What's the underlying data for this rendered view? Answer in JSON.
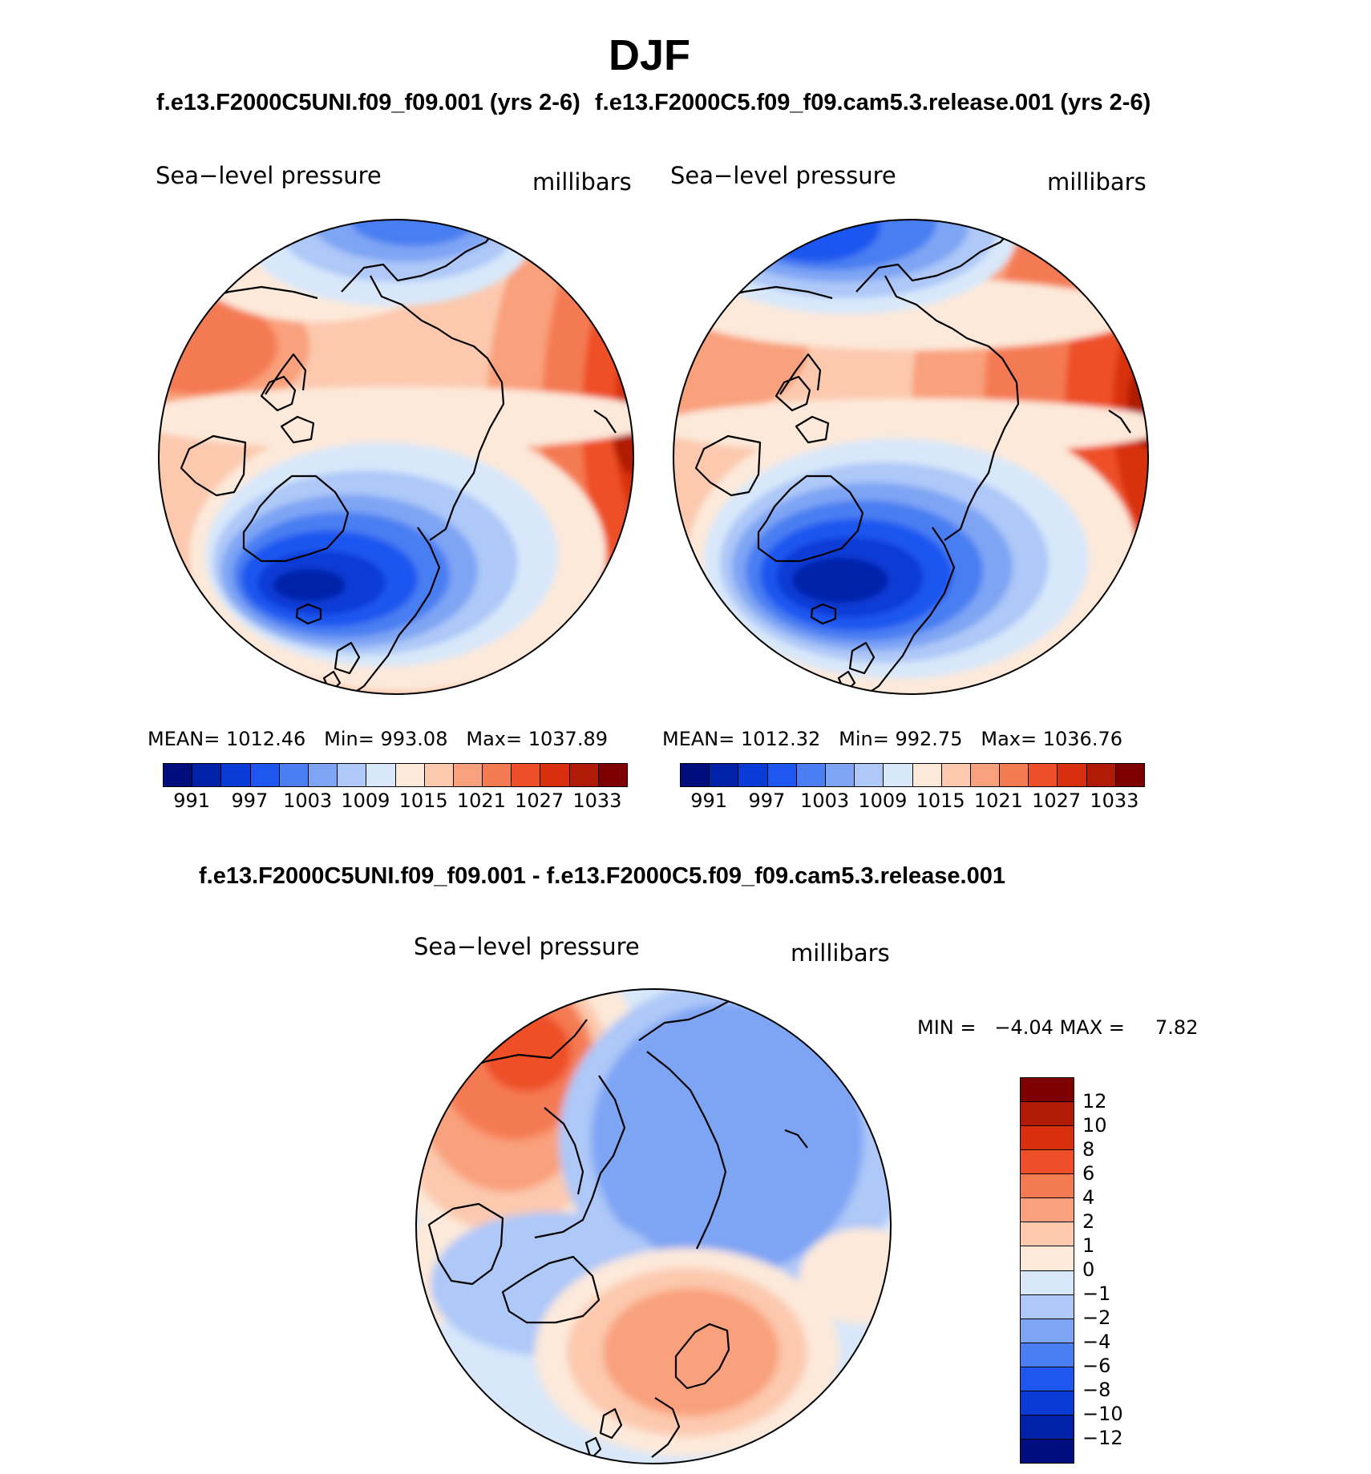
{
  "header": {
    "season": "DJF",
    "left_case": "f.e13.F2000C5UNI.f09_f09.001 (yrs 2-6)",
    "right_case": "f.e13.F2000C5.f09_f09.cam5.3.release.001 (yrs 2-6)",
    "diff_title": "f.e13.F2000C5UNI.f09_f09.001 - f.e13.F2000C5.f09_f09.cam5.3.release.001"
  },
  "panels": {
    "left": {
      "variable": "Sea−level pressure",
      "units": "millibars",
      "stats": {
        "mean_label": "MEAN=",
        "mean": "1012.46",
        "min_label": "Min=",
        "min": "993.08",
        "max_label": "Max=",
        "max": "1037.89"
      }
    },
    "right": {
      "variable": "Sea−level pressure",
      "units": "millibars",
      "stats": {
        "mean_label": "MEAN=",
        "mean": "1012.32",
        "min_label": "Min=",
        "min": "992.75",
        "max_label": "Max=",
        "max": "1036.76"
      }
    },
    "diff": {
      "variable": "Sea−level pressure",
      "units": "millibars",
      "stats": {
        "min_label": "MIN =",
        "min": "−4.04",
        "max_label": "MAX =",
        "max": "7.82"
      }
    }
  },
  "colorbars": {
    "abs_colors": [
      "#000d7c",
      "#0021a8",
      "#0a3bd6",
      "#1f56f0",
      "#4a7ef2",
      "#7ea4f4",
      "#aec8f8",
      "#d8e8fa",
      "#fde9da",
      "#fcc9ae",
      "#f9a07c",
      "#f47a52",
      "#ee4f28",
      "#d8300e",
      "#b01a06",
      "#7e0000"
    ],
    "abs_ticks": [
      "991",
      "997",
      "1003",
      "1009",
      "1015",
      "1021",
      "1027",
      "1033"
    ],
    "diff_colors": [
      "#7e0000",
      "#b01a06",
      "#d8300e",
      "#ee4f28",
      "#f47a52",
      "#f9a07c",
      "#fcc9ae",
      "#fde9da",
      "#d8e8fa",
      "#aec8f8",
      "#7ea4f4",
      "#4a7ef2",
      "#1f56f0",
      "#0a3bd6",
      "#0021a8",
      "#000d7c"
    ],
    "diff_ticks": [
      "12",
      "10",
      "8",
      "6",
      "4",
      "2",
      "1",
      "0",
      "−1",
      "−2",
      "−4",
      "−6",
      "−8",
      "−10",
      "−12"
    ]
  }
}
